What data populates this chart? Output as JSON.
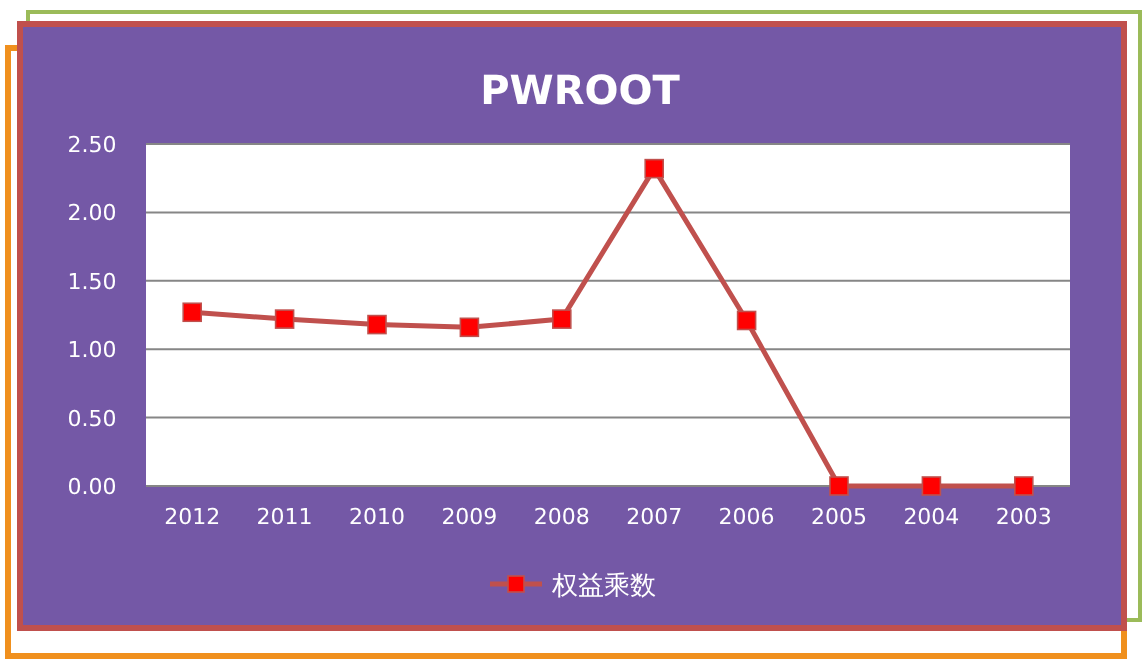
{
  "chart_data": {
    "type": "line",
    "title": "PWROOT",
    "categories": [
      "2012",
      "2011",
      "2010",
      "2009",
      "2008",
      "2007",
      "2006",
      "2005",
      "2004",
      "2003"
    ],
    "series": [
      {
        "name": "权益乘数",
        "color": "#c0504d",
        "values": [
          1.27,
          1.22,
          1.18,
          1.16,
          1.22,
          2.32,
          1.21,
          0,
          0,
          0
        ]
      }
    ],
    "ylim": [
      0,
      2.5
    ],
    "yticks": [
      {
        "value": 0,
        "label": "0.00"
      },
      {
        "value": 0.5,
        "label": "0.50"
      },
      {
        "value": 1,
        "label": "1.00"
      },
      {
        "value": 1.5,
        "label": "1.50"
      },
      {
        "value": 2,
        "label": "2.00"
      },
      {
        "value": 2.5,
        "label": "2.50"
      }
    ],
    "grid": "y",
    "legend": "bottom",
    "marker": "square",
    "line_style": "solid"
  }
}
